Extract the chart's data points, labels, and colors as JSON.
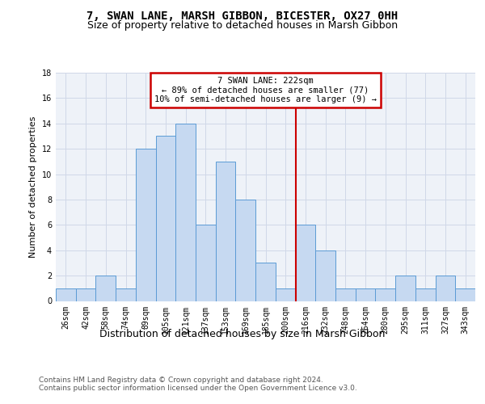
{
  "title_line1": "7, SWAN LANE, MARSH GIBBON, BICESTER, OX27 0HH",
  "title_line2": "Size of property relative to detached houses in Marsh Gibbon",
  "xlabel": "Distribution of detached houses by size in Marsh Gibbon",
  "ylabel": "Number of detached properties",
  "categories": [
    "26sqm",
    "42sqm",
    "58sqm",
    "74sqm",
    "89sqm",
    "105sqm",
    "121sqm",
    "137sqm",
    "153sqm",
    "169sqm",
    "185sqm",
    "200sqm",
    "216sqm",
    "232sqm",
    "248sqm",
    "264sqm",
    "280sqm",
    "295sqm",
    "311sqm",
    "327sqm",
    "343sqm"
  ],
  "values": [
    1,
    1,
    2,
    1,
    12,
    13,
    14,
    6,
    11,
    8,
    3,
    1,
    6,
    4,
    1,
    1,
    1,
    2,
    1,
    2,
    1
  ],
  "bar_color": "#c6d9f1",
  "bar_edgecolor": "#5b9bd5",
  "vline_color": "#cc0000",
  "annotation_text": "7 SWAN LANE: 222sqm\n← 89% of detached houses are smaller (77)\n10% of semi-detached houses are larger (9) →",
  "annotation_box_edgecolor": "#cc0000",
  "grid_color": "#d0d8e8",
  "bg_color": "#eef2f8",
  "ylim": [
    0,
    18
  ],
  "yticks": [
    0,
    2,
    4,
    6,
    8,
    10,
    12,
    14,
    16,
    18
  ],
  "title_fontsize": 10,
  "subtitle_fontsize": 9,
  "ylabel_fontsize": 8,
  "xlabel_fontsize": 9,
  "tick_fontsize": 7,
  "annot_fontsize": 7.5,
  "footnote_fontsize": 6.5,
  "footnote_line1": "Contains HM Land Registry data © Crown copyright and database right 2024.",
  "footnote_line2": "Contains public sector information licensed under the Open Government Licence v3.0."
}
